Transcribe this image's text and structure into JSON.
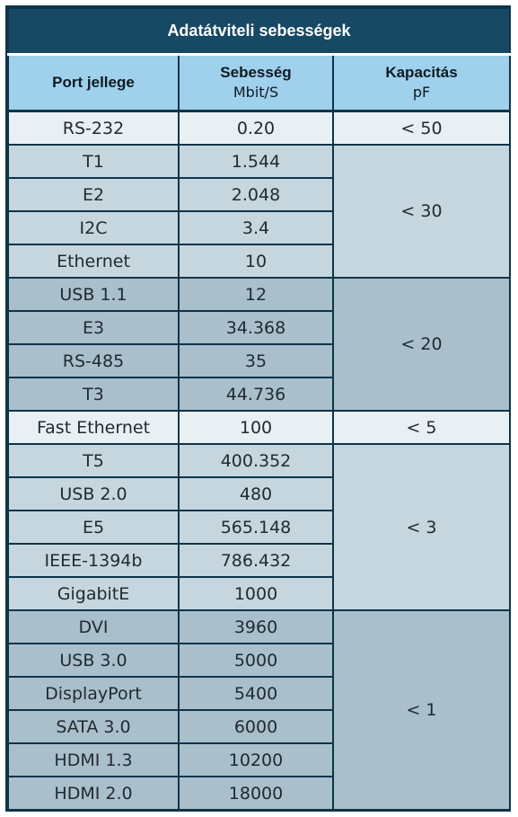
{
  "table": {
    "title": "Adatátviteli sebességek",
    "headers": {
      "port": "Port jellege",
      "speed_line1": "Sebesség",
      "speed_line2": "Mbit/S",
      "cap_line1": "Kapacitás",
      "cap_line2": "pF"
    },
    "groups": [
      {
        "shade": "white",
        "capacitance": "< 50",
        "rows": [
          {
            "port": "RS-232",
            "speed": "0.20"
          }
        ]
      },
      {
        "shade": "light",
        "capacitance": "< 30",
        "rows": [
          {
            "port": "T1",
            "speed": "1.544"
          },
          {
            "port": "E2",
            "speed": "2.048"
          },
          {
            "port": "I2C",
            "speed": "3.4"
          },
          {
            "port": "Ethernet",
            "speed": "10"
          }
        ]
      },
      {
        "shade": "dark",
        "capacitance": "< 20",
        "rows": [
          {
            "port": "USB 1.1",
            "speed": "12"
          },
          {
            "port": "E3",
            "speed": "34.368"
          },
          {
            "port": "RS-485",
            "speed": "35"
          },
          {
            "port": "T3",
            "speed": "44.736"
          }
        ]
      },
      {
        "shade": "white",
        "capacitance": "< 5",
        "rows": [
          {
            "port": "Fast Ethernet",
            "speed": "100"
          }
        ]
      },
      {
        "shade": "light",
        "capacitance": "< 3",
        "rows": [
          {
            "port": "T5",
            "speed": "400.352"
          },
          {
            "port": "USB 2.0",
            "speed": "480"
          },
          {
            "port": "E5",
            "speed": "565.148"
          },
          {
            "port": "IEEE-1394b",
            "speed": "786.432"
          },
          {
            "port": "GigabitE",
            "speed": "1000"
          }
        ]
      },
      {
        "shade": "dark",
        "capacitance": "< 1",
        "rows": [
          {
            "port": "DVI",
            "speed": "3960"
          },
          {
            "port": "USB 3.0",
            "speed": "5000"
          },
          {
            "port": "DisplayPort",
            "speed": "5400"
          },
          {
            "port": "SATA 3.0",
            "speed": "6000"
          },
          {
            "port": "HDMI 1.3",
            "speed": "10200"
          },
          {
            "port": "HDMI 2.0",
            "speed": "18000"
          }
        ]
      }
    ]
  }
}
